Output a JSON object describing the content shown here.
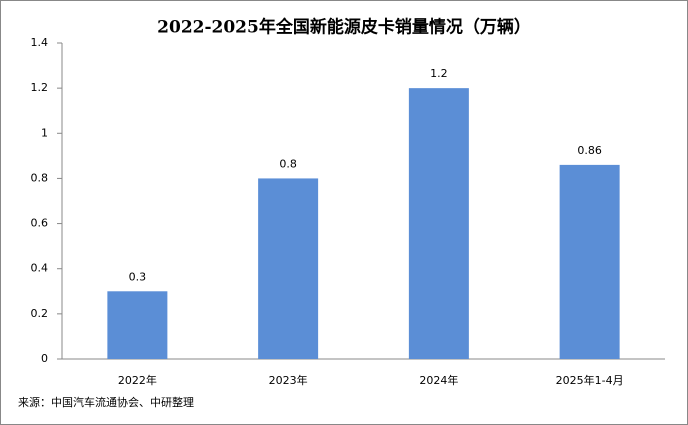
{
  "chart_data": {
    "type": "bar",
    "title": "2022-2025年全国新能源皮卡销量情况（万辆）",
    "categories": [
      "2022年",
      "2023年",
      "2024年",
      "2025年1-4月"
    ],
    "values": [
      0.3,
      0.8,
      1.2,
      0.86
    ],
    "color": "#5b8ed6",
    "ylim": [
      0,
      1.4
    ],
    "yticks": [
      0,
      0.2,
      0.4,
      0.6,
      0.8,
      1,
      1.2,
      1.4
    ],
    "grid": false,
    "source": "来源：中国汽车流通协会、中研整理"
  }
}
